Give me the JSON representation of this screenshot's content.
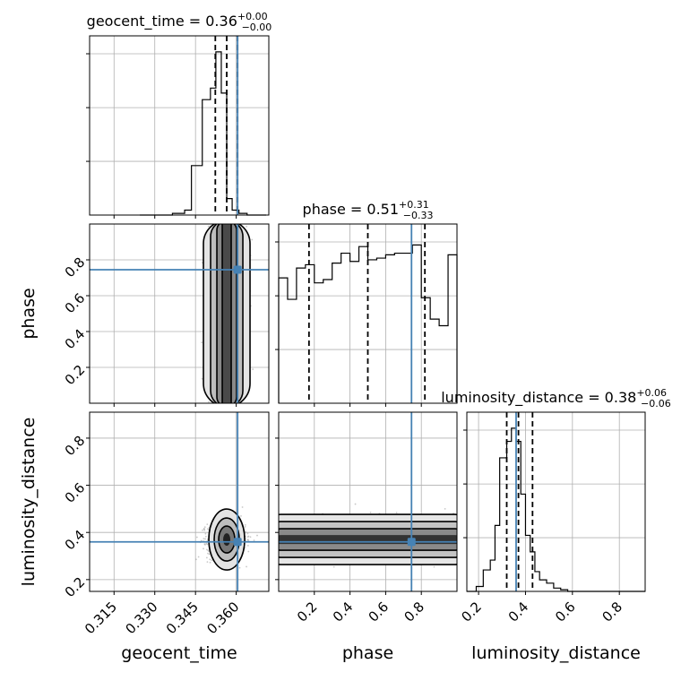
{
  "chart_data": {
    "type": "corner",
    "parameters": [
      {
        "name": "geocent_time",
        "label": "geocent_time",
        "title": "geocent_time = 0.36",
        "title_sup": "+0.00",
        "title_sub": "−0.00",
        "range": [
          0.306,
          0.372
        ],
        "ticks": [
          0.315,
          0.33,
          0.345,
          0.36
        ],
        "tick_labels": [
          "0.315",
          "0.330",
          "0.345",
          "0.360"
        ],
        "quantiles": [
          0.3523,
          0.3565,
          0.3605
        ],
        "truth": 0.3605,
        "bin_edges": [
          0.3245,
          0.327,
          0.329,
          0.3315,
          0.334,
          0.3365,
          0.341,
          0.3435,
          0.3475,
          0.3505,
          0.3525,
          0.3545,
          0.3565,
          0.3585,
          0.361,
          0.364,
          0.368,
          0.371
        ],
        "hist_counts": [
          0.0,
          0.0,
          0.0,
          0.0,
          0.0,
          0.01,
          0.03,
          0.3,
          0.7,
          0.77,
          0.99,
          0.74,
          0.1,
          0.03,
          0.01,
          0.0,
          0.0
        ]
      },
      {
        "name": "phase",
        "label": "phase",
        "title": "phase = 0.51",
        "title_sup": "+0.31",
        "title_sub": "−0.33",
        "range": [
          0.0,
          1.0
        ],
        "ticks": [
          0.2,
          0.4,
          0.6,
          0.8
        ],
        "tick_labels": [
          "0.2",
          "0.4",
          "0.6",
          "0.8"
        ],
        "quantiles": [
          0.17,
          0.5,
          0.82
        ],
        "truth": 0.745,
        "bin_edges": [
          0.0,
          0.05,
          0.1,
          0.15,
          0.2,
          0.25,
          0.3,
          0.35,
          0.4,
          0.45,
          0.5,
          0.55,
          0.6,
          0.65,
          0.7,
          0.75,
          0.8,
          0.85,
          0.9,
          0.95,
          1.0
        ],
        "hist_counts": [
          0.76,
          0.63,
          0.82,
          0.84,
          0.73,
          0.75,
          0.85,
          0.91,
          0.86,
          0.95,
          0.87,
          0.88,
          0.9,
          0.91,
          0.91,
          0.96,
          0.64,
          0.51,
          0.47,
          0.9
        ]
      },
      {
        "name": "luminosity_distance",
        "label": "luminosity_distance",
        "title": "luminosity_distance = 0.38",
        "title_sup": "+0.06",
        "title_sub": "−0.06",
        "range": [
          0.15,
          0.91
        ],
        "ticks": [
          0.2,
          0.4,
          0.6,
          0.8
        ],
        "tick_labels": [
          "0.2",
          "0.4",
          "0.6",
          "0.8"
        ],
        "quantiles": [
          0.32,
          0.37,
          0.43
        ],
        "truth": 0.36,
        "bin_edges": [
          0.15,
          0.19,
          0.22,
          0.25,
          0.27,
          0.29,
          0.32,
          0.34,
          0.36,
          0.38,
          0.4,
          0.42,
          0.44,
          0.46,
          0.49,
          0.52,
          0.55,
          0.58,
          0.61,
          0.64,
          0.67,
          0.7,
          0.91
        ],
        "hist_counts": [
          0.0,
          0.03,
          0.13,
          0.19,
          0.4,
          0.81,
          0.91,
          0.99,
          0.91,
          0.59,
          0.34,
          0.24,
          0.12,
          0.07,
          0.05,
          0.02,
          0.01,
          0.0,
          0.0,
          0.0,
          0.0,
          0.0
        ]
      }
    ],
    "truth_point": {
      "geocent_time": 0.3605,
      "phase": 0.745,
      "luminosity_distance": 0.36
    },
    "grid": true,
    "colors": {
      "truth": "#4682b4",
      "contour": "#000000",
      "samples": "#9a9a9a"
    }
  }
}
